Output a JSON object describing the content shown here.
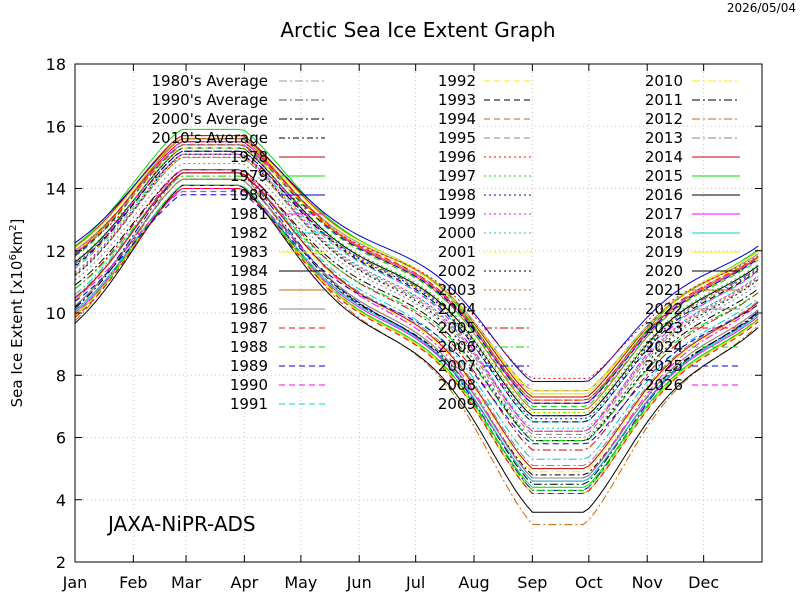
{
  "header": {
    "date_stamp": "2026/05/04"
  },
  "chart_data": {
    "type": "line",
    "title": "Arctic Sea Ice Extent Graph",
    "ylabel_text": "Sea Ice Extent [x10",
    "ylabel_sup1": "6",
    "ylabel_mid": "km",
    "ylabel_sup2": "2",
    "ylabel_end": "]",
    "watermark": "JAXA-NiPR-ADS",
    "ylim": [
      2,
      18
    ],
    "yticks": [
      2,
      4,
      6,
      8,
      10,
      12,
      14,
      16,
      18
    ],
    "x_months": [
      "Jan",
      "Feb",
      "Mar",
      "Apr",
      "May",
      "Jun",
      "Jul",
      "Aug",
      "Sep",
      "Oct",
      "Nov",
      "Dec"
    ],
    "xlim_days": [
      1,
      366
    ],
    "grid": true,
    "legend_position": "inside-top, three columns",
    "averages": [
      {
        "name": "1980's Average",
        "color": "#999999",
        "dash": "8,3,2,3",
        "min": 7.2,
        "max": 15.5
      },
      {
        "name": "1990's Average",
        "color": "#555555",
        "dash": "8,3,2,3",
        "min": 6.7,
        "max": 15.2
      },
      {
        "name": "2000's Average",
        "color": "#000000",
        "dash": "8,3,2,3",
        "min": 5.9,
        "max": 14.6
      },
      {
        "name": "2010's Average",
        "color": "#000000",
        "dash": "6,3,2,3",
        "min": 4.8,
        "max": 14.0
      }
    ],
    "series": [
      {
        "name": "1978",
        "color": "#cc0000",
        "dash": "",
        "min": 7.3,
        "max": 15.7
      },
      {
        "name": "1979",
        "color": "#00dd00",
        "dash": "",
        "min": 7.1,
        "max": 15.9
      },
      {
        "name": "1980",
        "color": "#0000cc",
        "dash": "",
        "min": 7.8,
        "max": 15.6
      },
      {
        "name": "1981",
        "color": "#ff00ff",
        "dash": "",
        "min": 7.1,
        "max": 15.5
      },
      {
        "name": "1982",
        "color": "#00cccc",
        "dash": "",
        "min": 7.4,
        "max": 15.6
      },
      {
        "name": "1983",
        "color": "#ffee00",
        "dash": "",
        "min": 7.4,
        "max": 15.6
      },
      {
        "name": "1984",
        "color": "#000000",
        "dash": "",
        "min": 6.7,
        "max": 15.3
      },
      {
        "name": "1985",
        "color": "#cc6600",
        "dash": "",
        "min": 6.9,
        "max": 15.6
      },
      {
        "name": "1986",
        "color": "#888888",
        "dash": "",
        "min": 7.5,
        "max": 15.4
      },
      {
        "name": "1987",
        "color": "#ff0000",
        "dash": "6,4",
        "min": 7.2,
        "max": 15.5
      },
      {
        "name": "1988",
        "color": "#00dd00",
        "dash": "6,4",
        "min": 7.0,
        "max": 15.4
      },
      {
        "name": "1989",
        "color": "#0000cc",
        "dash": "6,4",
        "min": 7.1,
        "max": 15.4
      },
      {
        "name": "1990",
        "color": "#ff00ff",
        "dash": "6,4",
        "min": 6.2,
        "max": 15.4
      },
      {
        "name": "1991",
        "color": "#00cccc",
        "dash": "6,4",
        "min": 6.5,
        "max": 15.1
      },
      {
        "name": "1992",
        "color": "#ffee00",
        "dash": "6,4",
        "min": 7.5,
        "max": 15.3
      },
      {
        "name": "1993",
        "color": "#000000",
        "dash": "6,4",
        "min": 6.5,
        "max": 15.2
      },
      {
        "name": "1994",
        "color": "#cc6600",
        "dash": "6,4",
        "min": 7.2,
        "max": 15.4
      },
      {
        "name": "1995",
        "color": "#888888",
        "dash": "6,4",
        "min": 6.1,
        "max": 15.0
      },
      {
        "name": "1996",
        "color": "#ff0000",
        "dash": "2,3",
        "min": 7.9,
        "max": 15.0
      },
      {
        "name": "1997",
        "color": "#00dd00",
        "dash": "2,3",
        "min": 6.8,
        "max": 15.3
      },
      {
        "name": "1998",
        "color": "#0000cc",
        "dash": "2,3",
        "min": 6.6,
        "max": 15.2
      },
      {
        "name": "1999",
        "color": "#ff00ff",
        "dash": "2,3",
        "min": 6.2,
        "max": 15.1
      },
      {
        "name": "2000",
        "color": "#00cccc",
        "dash": "2,3",
        "min": 6.3,
        "max": 15.0
      },
      {
        "name": "2001",
        "color": "#ffee00",
        "dash": "2,3",
        "min": 6.8,
        "max": 15.0
      },
      {
        "name": "2002",
        "color": "#000000",
        "dash": "2,3",
        "min": 5.9,
        "max": 15.1
      },
      {
        "name": "2003",
        "color": "#cc6600",
        "dash": "2,3",
        "min": 6.2,
        "max": 15.0
      },
      {
        "name": "2004",
        "color": "#888888",
        "dash": "2,3",
        "min": 6.0,
        "max": 14.8
      },
      {
        "name": "2005",
        "color": "#cc0000",
        "dash": "8,3,2,3",
        "min": 5.6,
        "max": 14.6
      },
      {
        "name": "2006",
        "color": "#00dd00",
        "dash": "8,3,2,3",
        "min": 5.9,
        "max": 14.4
      },
      {
        "name": "2007",
        "color": "#0000cc",
        "dash": "8,3,2,3",
        "min": 4.3,
        "max": 14.5
      },
      {
        "name": "2008",
        "color": "#ff00ff",
        "dash": "8,3,2,3",
        "min": 4.7,
        "max": 14.6
      },
      {
        "name": "2009",
        "color": "#00cccc",
        "dash": "8,3,2,3",
        "min": 5.3,
        "max": 14.5
      },
      {
        "name": "2010",
        "color": "#ffee00",
        "dash": "8,3,2,3",
        "min": 4.9,
        "max": 14.5
      },
      {
        "name": "2011",
        "color": "#000000",
        "dash": "8,3,2,3",
        "min": 4.5,
        "max": 14.3
      },
      {
        "name": "2012",
        "color": "#cc6600",
        "dash": "8,3,2,3",
        "min": 3.2,
        "max": 14.5
      },
      {
        "name": "2013",
        "color": "#888888",
        "dash": "8,3,2,3",
        "min": 5.1,
        "max": 14.5
      },
      {
        "name": "2014",
        "color": "#cc0000",
        "dash": "",
        "min": 5.0,
        "max": 14.5
      },
      {
        "name": "2015",
        "color": "#00dd00",
        "dash": "",
        "min": 4.4,
        "max": 14.0
      },
      {
        "name": "2016",
        "color": "#000000",
        "dash": "",
        "min": 4.2,
        "max": 14.1
      },
      {
        "name": "2017",
        "color": "#ff00ff",
        "dash": "",
        "min": 4.6,
        "max": 14.0
      },
      {
        "name": "2018",
        "color": "#00cccc",
        "dash": "",
        "min": 4.6,
        "max": 14.1
      },
      {
        "name": "2019",
        "color": "#ffee00",
        "dash": "",
        "min": 4.2,
        "max": 14.1
      },
      {
        "name": "2020",
        "color": "#000000",
        "dash": "",
        "min": 3.6,
        "max": 14.1
      },
      {
        "name": "2021",
        "color": "#cc6600",
        "dash": "",
        "min": 4.7,
        "max": 14.3
      },
      {
        "name": "2022",
        "color": "#888888",
        "dash": "",
        "min": 4.7,
        "max": 14.3
      },
      {
        "name": "2023",
        "color": "#ff0000",
        "dash": "6,4",
        "min": 4.2,
        "max": 14.0
      },
      {
        "name": "2024",
        "color": "#00dd00",
        "dash": "6,4",
        "min": 4.3,
        "max": 14.1
      },
      {
        "name": "2025",
        "color": "#0000cc",
        "dash": "6,4",
        "min": null,
        "max": 13.8
      },
      {
        "name": "2026",
        "color": "#ff00ff",
        "dash": "6,4",
        "min": null,
        "max": 13.9
      }
    ]
  }
}
